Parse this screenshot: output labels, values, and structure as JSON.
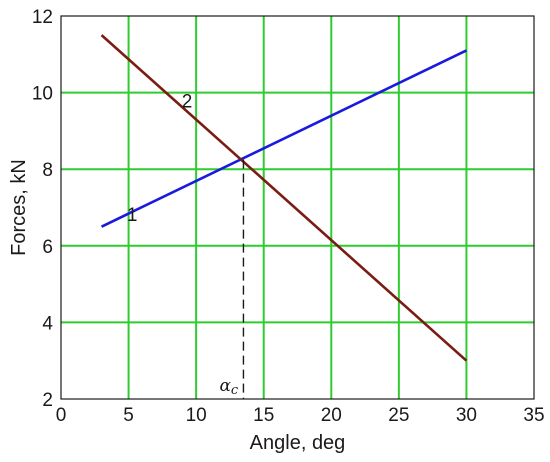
{
  "chart_data": {
    "type": "line",
    "title": "",
    "xlabel": "Angle, deg",
    "ylabel": "Forces, kN",
    "xlim": [
      0,
      35
    ],
    "ylim": [
      2,
      12
    ],
    "xticks": [
      "0",
      "5",
      "10",
      "15",
      "20",
      "25",
      "30",
      "35"
    ],
    "yticks": [
      "2",
      "4",
      "6",
      "8",
      "10",
      "12"
    ],
    "grid": true,
    "grid_color": "#2ecc2e",
    "series": [
      {
        "name": "1",
        "color": "#1a1adf",
        "x": [
          3,
          30
        ],
        "y": [
          6.5,
          11.1
        ]
      },
      {
        "name": "2",
        "color": "#7a1c12",
        "x": [
          3,
          30
        ],
        "y": [
          11.5,
          3.0
        ]
      }
    ],
    "annotations": {
      "critical_angle": {
        "x": 13.5,
        "y": 8.25,
        "symbol": "α",
        "subscript": "c"
      }
    }
  }
}
